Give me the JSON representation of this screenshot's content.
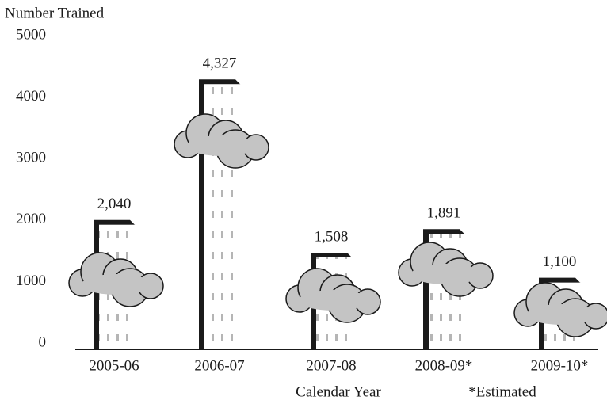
{
  "chart_data": {
    "type": "bar",
    "title": "Number Trained",
    "x_label": "Calendar Year",
    "note": "*Estimated",
    "categories": [
      "2005-06",
      "2006-07",
      "2007-08",
      "2008-09*",
      "2009-10*"
    ],
    "values": [
      2040,
      4327,
      1508,
      1891,
      1100
    ],
    "value_labels": [
      "2,040",
      "4,327",
      "1,508",
      "1,891",
      "1,100"
    ],
    "color": "#1a1a1a",
    "ylim": [
      0,
      5000
    ],
    "yticks": [
      0,
      1000,
      2000,
      3000,
      4000,
      5000
    ],
    "grid": false
  }
}
